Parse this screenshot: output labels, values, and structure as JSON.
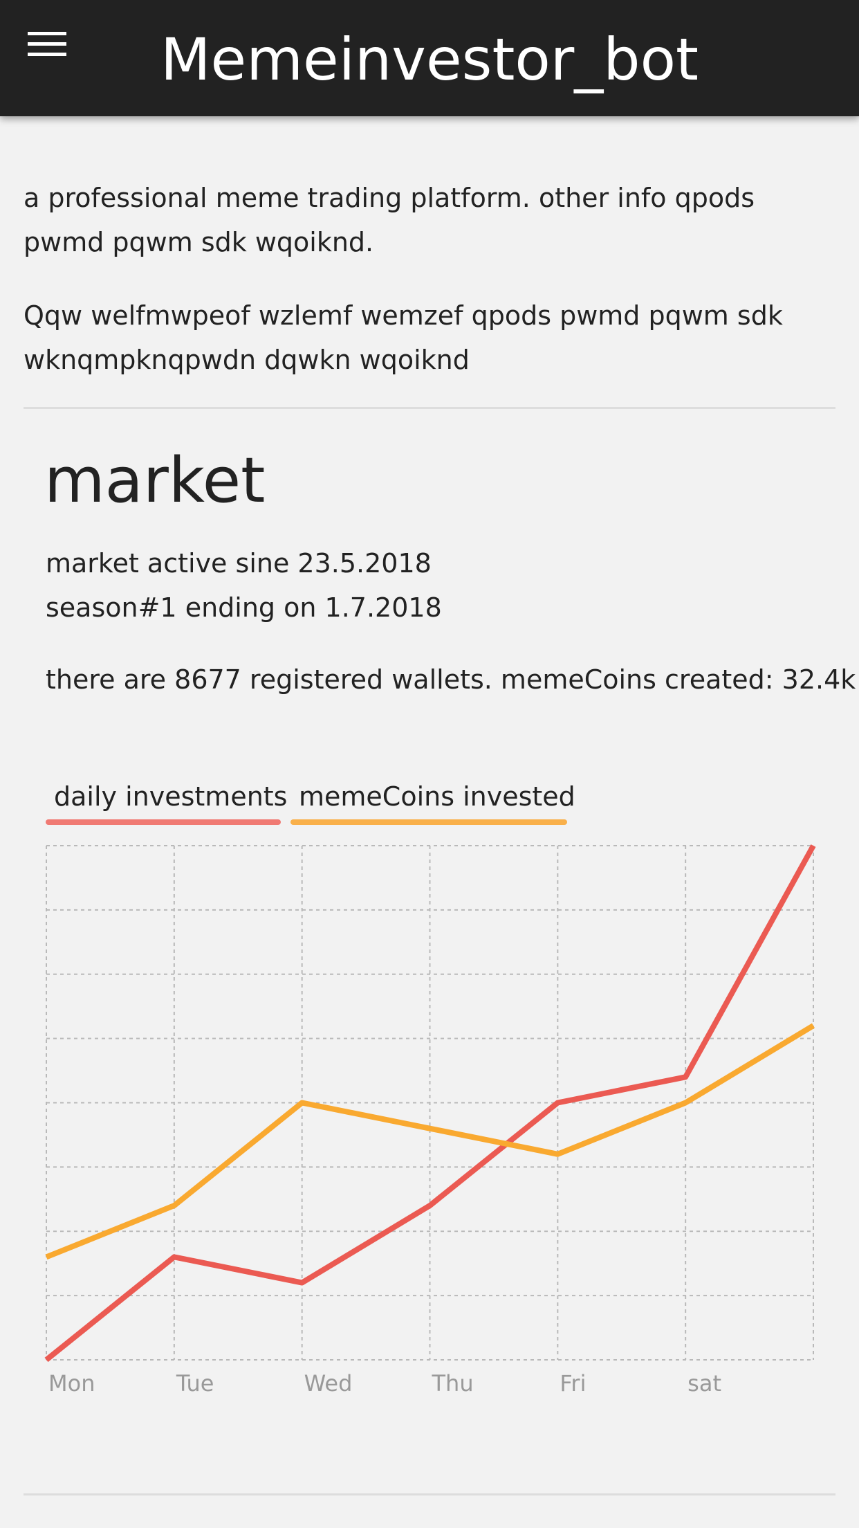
{
  "appbar": {
    "title": "Memeinvestor_bot",
    "menu_icon": "hamburger-menu-icon"
  },
  "intro": {
    "line1": "a professional meme trading platform. other info qpods pwmd pqwm sdk wqoiknd.",
    "line2": "Qqw welfmwpeof wzlemf wemzef qpods pwmd pqwm sdk wknqmpknqpwdn dqwkn wqoiknd"
  },
  "market": {
    "title": "market",
    "active_since": "market active sine 23.5.2018",
    "season": "season#1 ending on 1.7.2018",
    "stats": "there are 8677 registered wallets. memeCoins created: 32.4k"
  },
  "tabs": [
    {
      "label": "daily investments",
      "color": "#f07a73"
    },
    {
      "label": "memeCoins invested",
      "color": "#f9b04a"
    }
  ],
  "chart_data": {
    "type": "line",
    "categories": [
      "Mon",
      "Tue",
      "Wed",
      "Thu",
      "Fri",
      "sat",
      ""
    ],
    "series": [
      {
        "name": "daily investments",
        "color": "#eb5a52",
        "values": [
          0,
          20,
          15,
          30,
          50,
          55,
          100
        ]
      },
      {
        "name": "memeCoins invested",
        "color": "#f9a930",
        "values": [
          20,
          30,
          50,
          45,
          40,
          50,
          65
        ]
      }
    ],
    "ylim": [
      0,
      100
    ],
    "grid": true,
    "legend": "top-left"
  }
}
